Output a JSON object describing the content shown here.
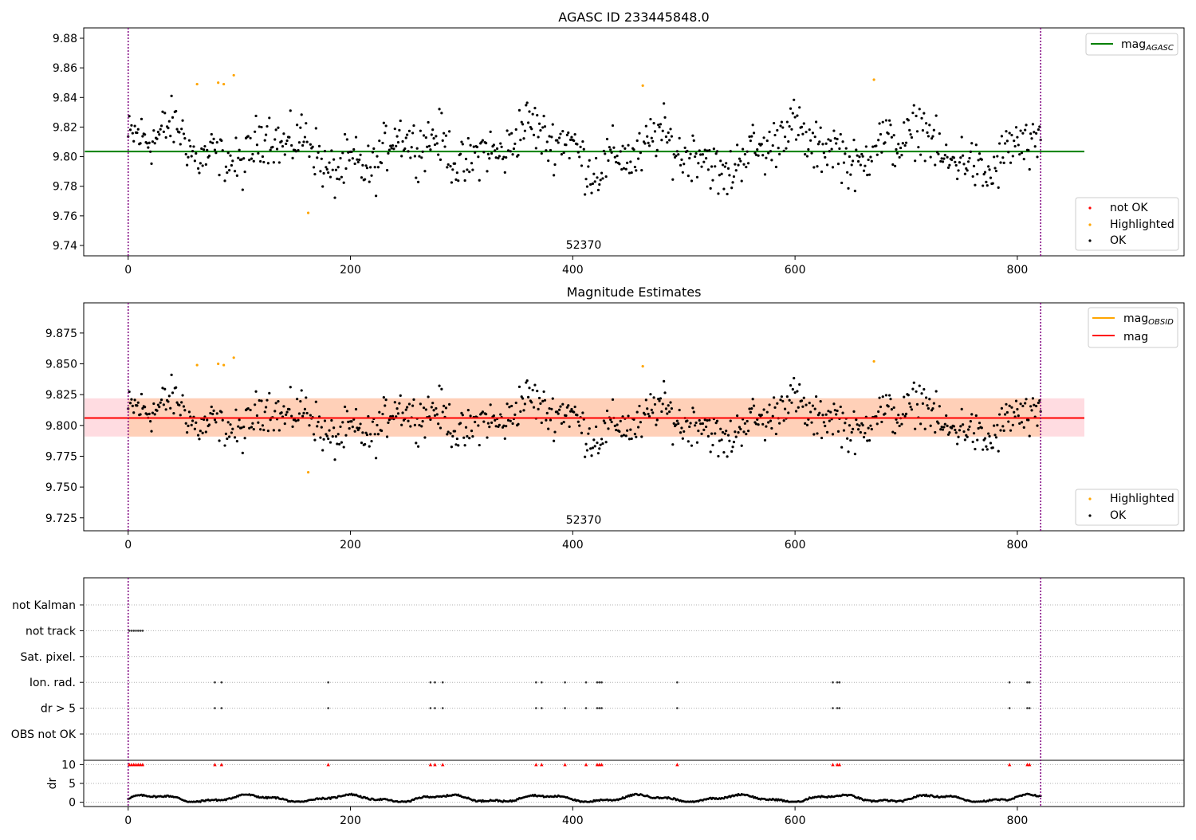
{
  "colors": {
    "ok": "#000000",
    "highlighted": "#ffa500",
    "not_ok": "#ff0000",
    "agasc_line": "#008000",
    "mag_line": "#ff0000",
    "mag_obsid_line": "#ffa500",
    "band_outer": "#ffdce1",
    "band_inner": "#ffd0b8",
    "vline": "#800080",
    "grid": "#b0b0b0"
  },
  "chart_data": [
    {
      "type": "scatter",
      "title": "AGASC ID 233445848.0",
      "xlim": [
        -40,
        950
      ],
      "ylim": [
        9.733,
        9.887
      ],
      "xticks": [
        "0",
        "200",
        "400",
        "600",
        "800"
      ],
      "yticks": [
        "9.74",
        "9.76",
        "9.78",
        "9.80",
        "9.82",
        "9.84",
        "9.86",
        "9.88"
      ],
      "n_points": 822,
      "vlines": [
        0,
        821
      ],
      "obsid_label": "52370",
      "hline": {
        "name": "mag_AGASC",
        "value": 9.8035
      },
      "highlighted_points": [
        [
          62,
          9.849
        ],
        [
          81,
          9.85
        ],
        [
          86,
          9.849
        ],
        [
          95,
          9.855
        ],
        [
          162,
          9.762
        ],
        [
          463,
          9.848
        ],
        [
          671,
          9.852
        ]
      ],
      "legend_lines": [
        {
          "label": "mag",
          "sub": "AGASC",
          "color": "#008000"
        }
      ],
      "legend_points": [
        {
          "label": "not OK",
          "color": "#ff0000"
        },
        {
          "label": "Highlighted",
          "color": "#ffa500"
        },
        {
          "label": "OK",
          "color": "#000000"
        }
      ]
    },
    {
      "type": "scatter",
      "title": "Magnitude Estimates",
      "xlim": [
        -40,
        950
      ],
      "ylim": [
        9.7145,
        9.8995
      ],
      "xticks": [
        "0",
        "200",
        "400",
        "600",
        "800"
      ],
      "yticks": [
        "9.725",
        "9.750",
        "9.775",
        "9.800",
        "9.825",
        "9.850",
        "9.875"
      ],
      "vlines": [
        0,
        821
      ],
      "obsid_label": "52370",
      "mag": 9.806,
      "band_outer": [
        9.791,
        9.822
      ],
      "band_inner": [
        9.791,
        9.822
      ],
      "highlighted_points": [
        [
          62,
          9.849
        ],
        [
          81,
          9.85
        ],
        [
          86,
          9.849
        ],
        [
          95,
          9.855
        ],
        [
          162,
          9.762
        ],
        [
          463,
          9.848
        ],
        [
          671,
          9.852
        ]
      ],
      "legend_lines": [
        {
          "label": "mag",
          "sub": "OBSID",
          "color": "#ffa500"
        },
        {
          "label": "mag",
          "sub": "",
          "color": "#ff0000"
        }
      ],
      "legend_points": [
        {
          "label": "Highlighted",
          "color": "#ffa500"
        },
        {
          "label": "OK",
          "color": "#000000"
        }
      ]
    },
    {
      "type": "scatter",
      "title": "",
      "xlim": [
        -40,
        950
      ],
      "xticks": [
        "0",
        "200",
        "400",
        "600",
        "800"
      ],
      "vlines": [
        0,
        821
      ],
      "flag_rows": [
        "not Kalman",
        "not track",
        "Sat. pixel.",
        "Ion. rad.",
        "dr > 5",
        "OBS not OK"
      ],
      "flags": {
        "not track": [
          1,
          3,
          5,
          7,
          9,
          11,
          13
        ],
        "Ion. rad.": [
          78,
          84,
          180,
          272,
          276,
          283,
          367,
          372,
          393,
          412,
          422,
          424,
          426,
          494,
          634,
          638,
          640,
          793,
          809,
          811
        ],
        "dr > 5": [
          78,
          84,
          180,
          272,
          276,
          283,
          367,
          372,
          393,
          412,
          422,
          424,
          426,
          494,
          634,
          638,
          640,
          793,
          809,
          811
        ]
      },
      "dr_ylabel": "dr",
      "dr_yticks": [
        "0",
        "5",
        "10"
      ],
      "dr_ylim": [
        -0.5,
        10.5
      ],
      "dr_high_markers": [
        1,
        3,
        5,
        7,
        9,
        11,
        13,
        78,
        84,
        180,
        272,
        276,
        283,
        367,
        372,
        393,
        412,
        422,
        424,
        426,
        494,
        634,
        638,
        640,
        793,
        809,
        811
      ]
    }
  ]
}
